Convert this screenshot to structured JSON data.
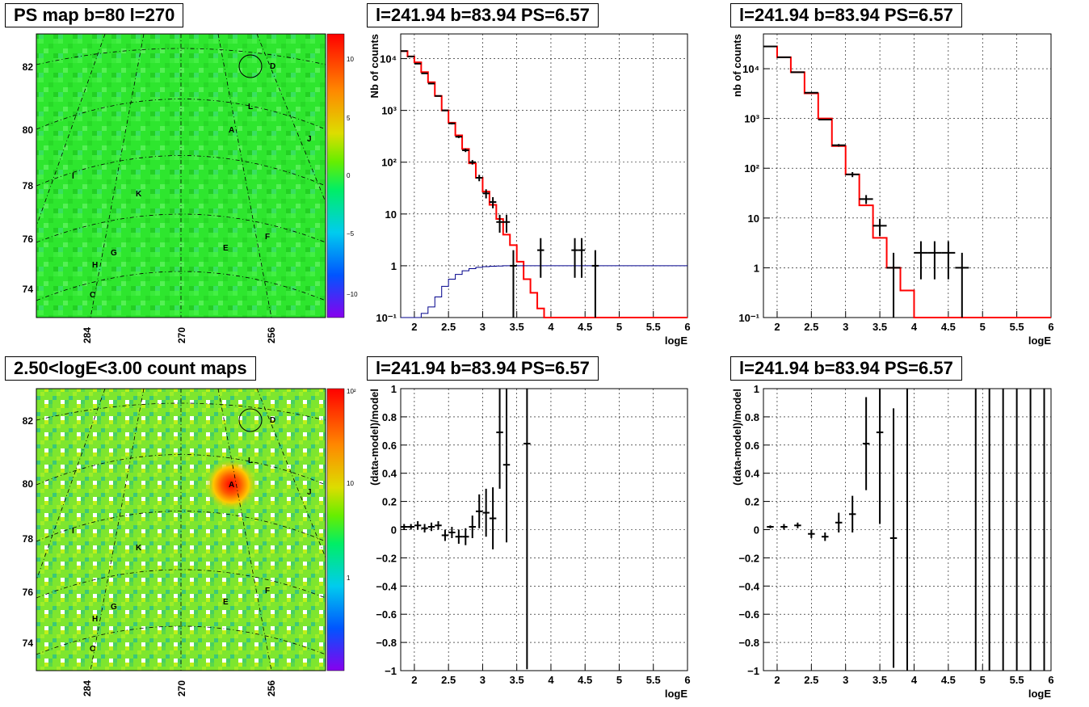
{
  "colors": {
    "data": "#000000",
    "model": "#ff0000",
    "ratio": "#00008b",
    "map_background": "#33ee33",
    "grid": "#000000"
  },
  "panels": {
    "ps_map": {
      "title": "PS map b=80 l=270"
    },
    "count_map": {
      "title": "2.50<logE<3.00 count maps"
    },
    "spec_left": {
      "title": "l=241.94 b=83.94 PS=6.57"
    },
    "spec_right": {
      "title": "l=241.94 b=83.94 PS=6.57"
    },
    "res_left": {
      "title": "l=241.94 b=83.94 PS=6.57"
    },
    "res_right": {
      "title": "l=241.94 b=83.94 PS=6.57"
    }
  },
  "map_axes": {
    "y_ticks": [
      "74",
      "76",
      "78",
      "80",
      "82"
    ],
    "x_ticks": [
      "284",
      "270",
      "256"
    ],
    "source_labels": [
      "A",
      "C",
      "D",
      "E",
      "F",
      "G",
      "H",
      "I",
      "J",
      "K",
      "L"
    ],
    "ps_colorbar_ticks": [
      "10",
      "5",
      "0",
      "−5",
      "−10"
    ],
    "count_colorbar_ticks": [
      "10²",
      "10",
      "1"
    ]
  },
  "chart_data": [
    {
      "panel": "spec_left",
      "type": "line",
      "title": "l=241.94 b=83.94 PS=6.57",
      "xlabel": "logE",
      "ylabel": "Nb of counts",
      "xlim": [
        1.8,
        6.0
      ],
      "ylim": [
        0.1,
        30000
      ],
      "yscale": "log",
      "grid": true,
      "x_ticks": [
        "2",
        "2.5",
        "3",
        "3.5",
        "4",
        "4.5",
        "5",
        "5.5",
        "6"
      ],
      "y_ticks": [
        "10⁻¹",
        "1",
        "10",
        "10²",
        "10³",
        "10⁴"
      ],
      "series": [
        {
          "role": "model",
          "bin_width": 0.1,
          "edges": [
            1.8,
            1.9,
            2.0,
            2.1,
            2.2,
            2.3,
            2.4,
            2.5,
            2.6,
            2.7,
            2.8,
            2.9,
            3.0,
            3.1,
            3.2,
            3.3,
            3.4,
            3.5,
            3.6,
            3.7,
            3.8,
            3.9,
            4.0,
            4.1,
            6.0
          ],
          "values": [
            14000,
            11000,
            8500,
            5500,
            3500,
            1900,
            1000,
            580,
            330,
            180,
            95,
            50,
            27,
            15,
            8,
            4,
            2.5,
            1.2,
            0.55,
            0.3,
            0.15,
            0.1,
            0.1,
            0.1
          ]
        },
        {
          "role": "ratio",
          "bin_width": 0.1,
          "edges": [
            1.8,
            2.1,
            2.2,
            2.3,
            2.4,
            2.5,
            2.6,
            2.7,
            2.8,
            2.9,
            3.0,
            3.1,
            3.2,
            3.3,
            3.4,
            6.0
          ],
          "values": [
            0.1,
            0.12,
            0.16,
            0.25,
            0.4,
            0.55,
            0.68,
            0.8,
            0.88,
            0.93,
            0.96,
            0.98,
            0.99,
            1.0,
            1.0
          ]
        }
      ],
      "points": [
        {
          "x": 1.85,
          "y": 14000
        },
        {
          "x": 1.95,
          "y": 11000
        },
        {
          "x": 2.05,
          "y": 8000
        },
        {
          "x": 2.15,
          "y": 5200
        },
        {
          "x": 2.25,
          "y": 3300
        },
        {
          "x": 2.35,
          "y": 1900
        },
        {
          "x": 2.45,
          "y": 1000
        },
        {
          "x": 2.55,
          "y": 560
        },
        {
          "x": 2.65,
          "y": 310
        },
        {
          "x": 2.75,
          "y": 170
        },
        {
          "x": 2.85,
          "y": 100
        },
        {
          "x": 2.95,
          "y": 50
        },
        {
          "x": 3.05,
          "y": 25
        },
        {
          "x": 3.15,
          "y": 17
        },
        {
          "x": 3.25,
          "y": 7
        },
        {
          "x": 3.35,
          "y": 7
        },
        {
          "x": 3.45,
          "y": 1
        },
        {
          "x": 3.85,
          "y": 2
        },
        {
          "x": 4.35,
          "y": 2
        },
        {
          "x": 4.45,
          "y": 2
        },
        {
          "x": 4.65,
          "y": 1
        }
      ]
    },
    {
      "panel": "spec_right",
      "type": "line",
      "title": "l=241.94 b=83.94 PS=6.57",
      "xlabel": "logE",
      "ylabel": "nb of counts",
      "xlim": [
        1.8,
        6.0
      ],
      "ylim": [
        0.1,
        50000
      ],
      "yscale": "log",
      "grid": true,
      "x_ticks": [
        "2",
        "2.5",
        "3",
        "3.5",
        "4",
        "4.5",
        "5",
        "5.5",
        "6"
      ],
      "y_ticks": [
        "10⁻¹",
        "1",
        "10",
        "10²",
        "10³",
        "10⁴"
      ],
      "series": [
        {
          "role": "model",
          "bin_width": 0.2,
          "edges": [
            1.8,
            2.0,
            2.2,
            2.4,
            2.6,
            2.8,
            3.0,
            3.2,
            3.4,
            3.6,
            3.8,
            4.0,
            4.2,
            6.0
          ],
          "values": [
            28000,
            17000,
            8500,
            3200,
            1000,
            280,
            75,
            18,
            4,
            1,
            0.35,
            0.1,
            0.1
          ]
        }
      ],
      "points": [
        {
          "x": 1.9,
          "y": 28000
        },
        {
          "x": 2.1,
          "y": 17000
        },
        {
          "x": 2.3,
          "y": 8500
        },
        {
          "x": 2.5,
          "y": 3300
        },
        {
          "x": 2.7,
          "y": 950
        },
        {
          "x": 2.9,
          "y": 290
        },
        {
          "x": 3.1,
          "y": 75
        },
        {
          "x": 3.3,
          "y": 24
        },
        {
          "x": 3.5,
          "y": 7
        },
        {
          "x": 3.7,
          "y": 1
        },
        {
          "x": 4.1,
          "y": 2
        },
        {
          "x": 4.3,
          "y": 2
        },
        {
          "x": 4.5,
          "y": 2
        },
        {
          "x": 4.7,
          "y": 1
        }
      ]
    },
    {
      "panel": "res_left",
      "type": "scatter",
      "title": "l=241.94 b=83.94 PS=6.57",
      "xlabel": "logE",
      "ylabel": "(data-model)/model",
      "xlim": [
        1.8,
        6.0
      ],
      "ylim": [
        -1,
        1
      ],
      "grid": true,
      "x_ticks": [
        "2",
        "2.5",
        "3",
        "3.5",
        "4",
        "4.5",
        "5",
        "5.5",
        "6"
      ],
      "y_ticks": [
        "−1",
        "−0.8",
        "−0.6",
        "−0.4",
        "−0.2",
        "0",
        "0.2",
        "0.4",
        "0.6",
        "0.8",
        "1"
      ],
      "points": [
        {
          "x": 1.85,
          "y": 0.02,
          "err": 0.02
        },
        {
          "x": 1.95,
          "y": 0.02,
          "err": 0.02
        },
        {
          "x": 2.05,
          "y": 0.03,
          "err": 0.03
        },
        {
          "x": 2.15,
          "y": 0.01,
          "err": 0.03
        },
        {
          "x": 2.25,
          "y": 0.02,
          "err": 0.03
        },
        {
          "x": 2.35,
          "y": 0.03,
          "err": 0.03
        },
        {
          "x": 2.45,
          "y": -0.04,
          "err": 0.04
        },
        {
          "x": 2.55,
          "y": -0.02,
          "err": 0.04
        },
        {
          "x": 2.65,
          "y": -0.05,
          "err": 0.05
        },
        {
          "x": 2.75,
          "y": -0.05,
          "err": 0.06
        },
        {
          "x": 2.85,
          "y": 0.02,
          "err": 0.08
        },
        {
          "x": 2.95,
          "y": 0.13,
          "err": 0.12
        },
        {
          "x": 3.05,
          "y": 0.12,
          "err": 0.17
        },
        {
          "x": 3.15,
          "y": 0.08,
          "err": 0.22
        },
        {
          "x": 3.25,
          "y": 0.69,
          "err": 0.4
        },
        {
          "x": 3.35,
          "y": 0.46,
          "err": 0.55
        },
        {
          "x": 3.65,
          "y": 0.61,
          "err": 1.6
        }
      ]
    },
    {
      "panel": "res_right",
      "type": "scatter",
      "title": "l=241.94 b=83.94 PS=6.57",
      "xlabel": "logE",
      "ylabel": "(data-model)/model",
      "xlim": [
        1.8,
        6.0
      ],
      "ylim": [
        -1,
        1
      ],
      "grid": true,
      "x_ticks": [
        "2",
        "2.5",
        "3",
        "3.5",
        "4",
        "4.5",
        "5",
        "5.5",
        "6"
      ],
      "y_ticks": [
        "−1",
        "−0.8",
        "−0.6",
        "−0.4",
        "−0.2",
        "0",
        "0.2",
        "0.4",
        "0.6",
        "0.8",
        "1"
      ],
      "points": [
        {
          "x": 1.9,
          "y": 0.02,
          "err": 0.01
        },
        {
          "x": 2.1,
          "y": 0.02,
          "err": 0.02
        },
        {
          "x": 2.3,
          "y": 0.03,
          "err": 0.02
        },
        {
          "x": 2.5,
          "y": -0.03,
          "err": 0.03
        },
        {
          "x": 2.7,
          "y": -0.05,
          "err": 0.03
        },
        {
          "x": 2.9,
          "y": 0.05,
          "err": 0.07
        },
        {
          "x": 3.1,
          "y": 0.11,
          "err": 0.13
        },
        {
          "x": 3.3,
          "y": 0.61,
          "err": 0.33
        },
        {
          "x": 3.5,
          "y": 0.69,
          "err": 0.65
        },
        {
          "x": 3.7,
          "y": -0.06,
          "err": 0.92
        }
      ],
      "full_bars": [
        3.9,
        4.9,
        5.1,
        5.3,
        5.5,
        5.7,
        5.9
      ]
    }
  ]
}
